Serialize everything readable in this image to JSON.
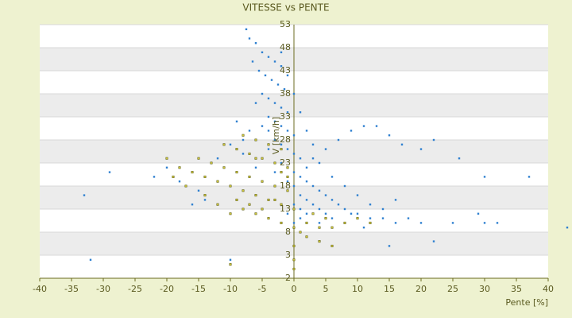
{
  "chart_data": {
    "type": "scatter",
    "title": "VITESSE vs PENTE",
    "x_label": "Pente [%]",
    "y_label": "V [km/h]",
    "xlim": [
      -40,
      40
    ],
    "xticks": [
      -40,
      -35,
      -30,
      -25,
      -20,
      -15,
      -10,
      -5,
      0,
      5,
      10,
      15,
      20,
      25,
      30,
      35,
      40
    ],
    "ylim": [
      -2,
      53
    ],
    "yticks": [
      -2,
      3,
      8,
      13,
      18,
      23,
      28,
      33,
      38,
      43,
      48,
      53
    ],
    "grid": true,
    "series": [
      {
        "color": "#2f80d0",
        "x": [
          -7.5,
          -7,
          -6,
          -5,
          -4,
          -3,
          -2,
          -6.5,
          -5.5,
          -4.5,
          -3.5,
          -2.5,
          -1.5,
          -5,
          -4,
          -3,
          -2,
          -1,
          -6,
          -4,
          -3,
          -2,
          -1,
          0,
          -5,
          -3,
          -2,
          -1,
          0,
          1,
          -4,
          -2,
          -1,
          0,
          1,
          2,
          -3,
          3,
          4,
          5,
          6,
          7,
          8,
          9,
          10,
          12,
          14,
          16,
          18,
          20,
          25,
          30,
          43,
          2,
          3,
          4,
          5,
          6,
          1,
          2,
          0,
          1,
          0,
          -1,
          2,
          3,
          5,
          7,
          9,
          11,
          13,
          15,
          17,
          20,
          22,
          26,
          30,
          37,
          -6,
          -8,
          -10,
          -12,
          -15,
          -18,
          -22,
          -29,
          -33,
          -32,
          -10,
          22,
          15,
          -9,
          -8,
          -7,
          -4,
          -2,
          -1,
          0,
          1,
          2,
          3,
          4,
          6,
          8,
          10,
          12,
          14,
          16,
          -1,
          0,
          1,
          4,
          8,
          11,
          29,
          32,
          -14,
          -16,
          -20
        ],
        "values": [
          52,
          50,
          49,
          47,
          46,
          45,
          44,
          45,
          43,
          42,
          41,
          40,
          39,
          38,
          37,
          36,
          35,
          34,
          36,
          33,
          32,
          31,
          30,
          29,
          31,
          28,
          27,
          26,
          25,
          24,
          26,
          23,
          22,
          21,
          20,
          19,
          21,
          18,
          17,
          16,
          15,
          14,
          13,
          12,
          12,
          11,
          11,
          10,
          11,
          10,
          10,
          10,
          9,
          15,
          14,
          13,
          12,
          11,
          13,
          12,
          14,
          16,
          18,
          19,
          22,
          24,
          26,
          28,
          30,
          31,
          31,
          29,
          27,
          26,
          28,
          24,
          20,
          20,
          22,
          25,
          27,
          24,
          17,
          19,
          20,
          21,
          16,
          2,
          2,
          6,
          5,
          32,
          28,
          30,
          30,
          47,
          42,
          38,
          34,
          30,
          27,
          23,
          20,
          18,
          16,
          14,
          13,
          15,
          12,
          10,
          11,
          10,
          10,
          9,
          12,
          10,
          15,
          14,
          22
        ]
      },
      {
        "color": "#606010",
        "x": [
          -20,
          -18,
          -16,
          -14,
          -12,
          -10,
          -8,
          -6,
          -4,
          -2,
          0,
          -15,
          -13,
          -11,
          -9,
          -7,
          -5,
          -3,
          -1,
          -11,
          -9,
          -7,
          -5,
          -3,
          -1,
          -8,
          -6,
          -4,
          -2,
          -10,
          -8,
          -6,
          -4,
          -2,
          0,
          2,
          4,
          6,
          8,
          10,
          12,
          3,
          5,
          1,
          2,
          4,
          6,
          0,
          0,
          0,
          -1,
          -3,
          -5,
          -7,
          -9,
          -12,
          -14,
          -17,
          -19,
          -6,
          -2,
          -10
        ],
        "values": [
          24,
          22,
          21,
          20,
          19,
          18,
          17,
          16,
          15,
          14,
          13,
          24,
          23,
          22,
          21,
          20,
          19,
          18,
          17,
          27,
          26,
          25,
          24,
          23,
          22,
          29,
          28,
          27,
          26,
          12,
          13,
          12,
          11,
          10,
          9,
          10,
          9,
          9,
          10,
          11,
          10,
          12,
          11,
          8,
          7,
          6,
          5,
          5,
          2,
          0,
          20,
          15,
          13,
          14,
          15,
          14,
          16,
          18,
          20,
          24,
          21,
          1
        ]
      }
    ]
  }
}
